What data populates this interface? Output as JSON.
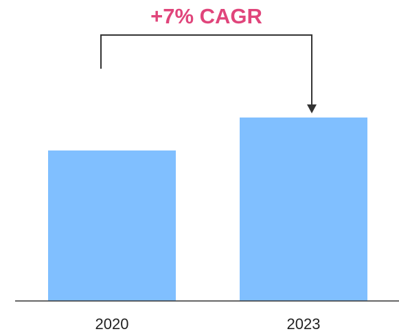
{
  "chart_data": {
    "type": "bar",
    "categories": [
      "2020",
      "2023"
    ],
    "values": [
      100,
      121.9
    ],
    "title": "",
    "xlabel": "",
    "ylabel": "",
    "ylim": [
      0,
      200
    ],
    "grid": false,
    "legend": "none",
    "annotation": {
      "text": "+7% CAGR",
      "from": "2020",
      "to": "2023"
    }
  },
  "colors": {
    "bar": "#80BFFF",
    "annotation_text": "#E0457B",
    "bracket": "#333333",
    "axis": "#333333"
  }
}
